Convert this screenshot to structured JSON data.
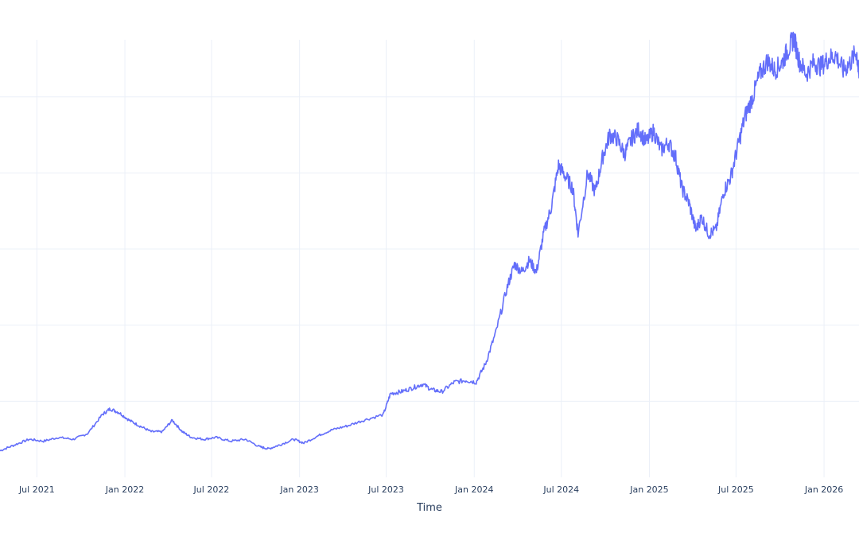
{
  "chart_data": {
    "type": "line",
    "title": "",
    "xlabel": "Time",
    "ylabel": "",
    "x_tick_labels": [
      "Jul 2021",
      "Jan 2022",
      "Jul 2022",
      "Jan 2023",
      "Jul 2023",
      "Jan 2024",
      "Jul 2024",
      "Jan 2025",
      "Jul 2025",
      "Jan 2026"
    ],
    "x_tick_dates": [
      "2021-07-01",
      "2022-01-01",
      "2022-07-01",
      "2023-01-01",
      "2023-07-01",
      "2024-01-01",
      "2024-07-01",
      "2025-01-01",
      "2025-07-01",
      "2026-01-01"
    ],
    "xlim": [
      "2021-04-15",
      "2026-03-15"
    ],
    "ylim": [
      0,
      230
    ],
    "y_gridlines": [
      40,
      80,
      120,
      160,
      200
    ],
    "grid": true,
    "legend": "none",
    "color": "#636efa",
    "series": [
      {
        "x": [
          "2021-04-15",
          "2021-05-15",
          "2021-06-15",
          "2021-07-15",
          "2021-08-15",
          "2021-09-15",
          "2021-10-15",
          "2021-11-15",
          "2021-12-01",
          "2021-12-20",
          "2022-01-10",
          "2022-02-01",
          "2022-02-25",
          "2022-03-20",
          "2022-04-10",
          "2022-05-01",
          "2022-05-20",
          "2022-06-15",
          "2022-07-10",
          "2022-08-10",
          "2022-09-10",
          "2022-10-10",
          "2022-10-28",
          "2022-11-20",
          "2022-12-20",
          "2023-01-10",
          "2023-02-10",
          "2023-03-10",
          "2023-04-10",
          "2023-05-15",
          "2023-06-25",
          "2023-07-10",
          "2023-08-01",
          "2023-08-25",
          "2023-09-15",
          "2023-10-05",
          "2023-10-25",
          "2023-11-20",
          "2023-12-15",
          "2024-01-05",
          "2024-01-25",
          "2024-02-15",
          "2024-03-10",
          "2024-03-25",
          "2024-04-10",
          "2024-04-25",
          "2024-05-10",
          "2024-05-25",
          "2024-06-10",
          "2024-06-25",
          "2024-07-10",
          "2024-07-25",
          "2024-08-05",
          "2024-08-25",
          "2024-09-10",
          "2024-09-25",
          "2024-10-10",
          "2024-10-25",
          "2024-11-10",
          "2024-11-25",
          "2024-12-10",
          "2024-12-25",
          "2025-01-10",
          "2025-01-25",
          "2025-02-10",
          "2025-02-25",
          "2025-03-10",
          "2025-03-25",
          "2025-04-08",
          "2025-04-20",
          "2025-05-05",
          "2025-05-20",
          "2025-06-05",
          "2025-06-20",
          "2025-07-05",
          "2025-07-20",
          "2025-08-05",
          "2025-08-20",
          "2025-09-05",
          "2025-09-20",
          "2025-10-05",
          "2025-10-20",
          "2025-10-30",
          "2025-11-10",
          "2025-11-25",
          "2025-12-10",
          "2025-12-25",
          "2026-01-10",
          "2026-01-25",
          "2026-02-10",
          "2026-02-25",
          "2026-03-10",
          "2026-03-15"
        ],
        "y": [
          14,
          17,
          20,
          19,
          21,
          20,
          23,
          33,
          36,
          34,
          30,
          27,
          24,
          24,
          30,
          24,
          21,
          20,
          21,
          19,
          20,
          16,
          15,
          17,
          20,
          18,
          22,
          25,
          27,
          30,
          33,
          44,
          45,
          47,
          49,
          46,
          45,
          50,
          51,
          50,
          60,
          76,
          100,
          112,
          108,
          114,
          108,
          128,
          142,
          164,
          158,
          152,
          128,
          160,
          150,
          168,
          180,
          178,
          170,
          178,
          183,
          176,
          182,
          172,
          176,
          168,
          152,
          144,
          130,
          137,
          128,
          130,
          150,
          158,
          174,
          190,
          200,
          212,
          219,
          214,
          218,
          226,
          231,
          219,
          212,
          218,
          216,
          220,
          222,
          214,
          218,
          224,
          210
        ]
      }
    ]
  }
}
